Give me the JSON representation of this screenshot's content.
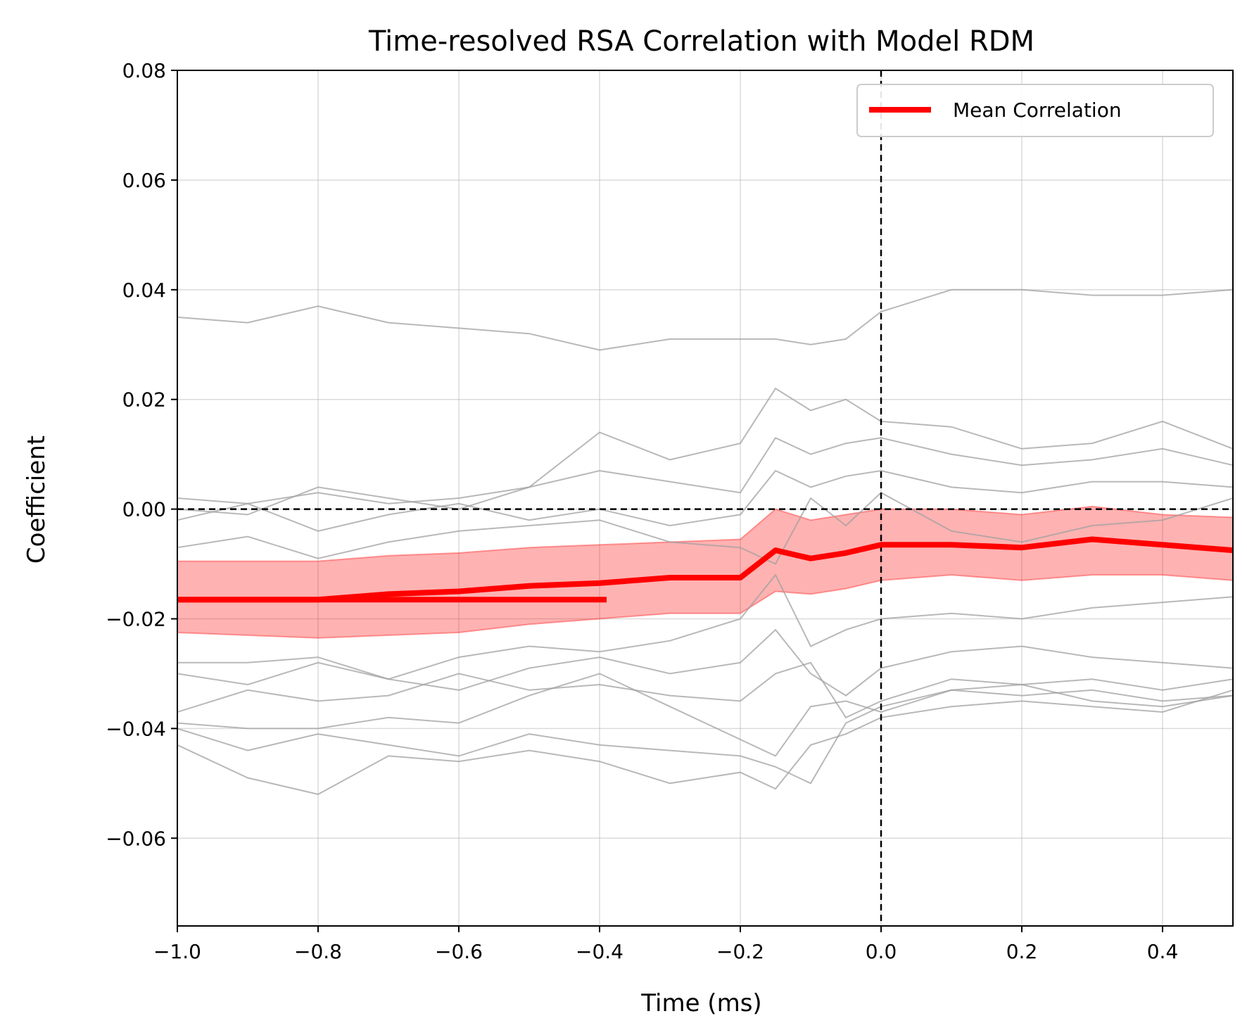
{
  "chart_data": {
    "type": "line",
    "title": "Time-resolved RSA Correlation with Model RDM",
    "xlabel": "Time (ms)",
    "ylabel": "Coefficient",
    "xlim": [
      -1.0,
      0.5
    ],
    "ylim": [
      -0.076,
      0.08
    ],
    "x_ticks": [
      -1.0,
      -0.8,
      -0.6,
      -0.4,
      -0.2,
      0.0,
      0.2,
      0.4
    ],
    "x_tick_labels": [
      "−1.0",
      "−0.8",
      "−0.6",
      "−0.4",
      "−0.2",
      "0.0",
      "0.2",
      "0.4"
    ],
    "y_ticks": [
      -0.06,
      -0.04,
      -0.02,
      0.0,
      0.02,
      0.04,
      0.06,
      0.08
    ],
    "y_tick_labels": [
      "−0.06",
      "−0.04",
      "−0.02",
      "0.00",
      "0.02",
      "0.04",
      "0.06",
      "0.08"
    ],
    "grid": true,
    "legend": {
      "position": "top-right",
      "entries": [
        "Mean Correlation"
      ]
    },
    "reference_lines": {
      "horizontal_y": 0.0,
      "vertical_x": 0.0,
      "style": "dashed"
    },
    "colors": {
      "mean": "#ff0000",
      "band": "#ff0000",
      "subjects": "#a0a0a0",
      "reference": "#000000"
    },
    "x": [
      -1.0,
      -0.9,
      -0.8,
      -0.7,
      -0.6,
      -0.5,
      -0.4,
      -0.3,
      -0.2,
      -0.15,
      -0.1,
      -0.05,
      0.0,
      0.1,
      0.2,
      0.3,
      0.4,
      0.5
    ],
    "series": [
      {
        "name": "Mean Correlation",
        "values": [
          -0.0165,
          -0.0165,
          -0.0165,
          -0.0155,
          -0.015,
          -0.014,
          -0.0135,
          -0.0125,
          -0.0125,
          -0.0075,
          -0.009,
          -0.008,
          -0.0065,
          -0.0065,
          -0.007,
          -0.0055,
          -0.0065,
          -0.0075
        ]
      },
      {
        "values": [
          0.035,
          0.034,
          0.037,
          0.034,
          0.033,
          0.032,
          0.029,
          0.031,
          0.031,
          0.031,
          0.03,
          0.031,
          0.036,
          0.04,
          0.04,
          0.039,
          0.039,
          0.04
        ]
      },
      {
        "values": [
          0.002,
          0.001,
          0.003,
          0.001,
          0.002,
          0.004,
          0.014,
          0.009,
          0.012,
          0.022,
          0.018,
          0.02,
          0.016,
          0.015,
          0.011,
          0.012,
          0.016,
          0.011
        ]
      },
      {
        "values": [
          0.0,
          -0.001,
          0.004,
          0.002,
          0.0,
          0.004,
          0.007,
          0.005,
          0.003,
          0.013,
          0.01,
          0.012,
          0.013,
          0.01,
          0.008,
          0.009,
          0.011,
          0.008
        ]
      },
      {
        "values": [
          -0.002,
          0.001,
          -0.004,
          -0.001,
          0.001,
          -0.002,
          0.0,
          -0.003,
          -0.001,
          0.007,
          0.004,
          0.006,
          0.007,
          0.004,
          0.003,
          0.005,
          0.005,
          0.004
        ]
      },
      {
        "values": [
          -0.007,
          -0.005,
          -0.009,
          -0.006,
          -0.004,
          -0.003,
          -0.002,
          -0.006,
          -0.007,
          -0.01,
          0.002,
          -0.003,
          0.003,
          -0.004,
          -0.006,
          -0.003,
          -0.002,
          0.002
        ]
      },
      {
        "values": [
          -0.03,
          -0.032,
          -0.028,
          -0.031,
          -0.027,
          -0.025,
          -0.026,
          -0.024,
          -0.02,
          -0.012,
          -0.025,
          -0.022,
          -0.02,
          -0.019,
          -0.02,
          -0.018,
          -0.017,
          -0.016
        ]
      },
      {
        "values": [
          -0.028,
          -0.028,
          -0.027,
          -0.031,
          -0.033,
          -0.029,
          -0.027,
          -0.03,
          -0.028,
          -0.022,
          -0.03,
          -0.034,
          -0.029,
          -0.026,
          -0.025,
          -0.027,
          -0.028,
          -0.029
        ]
      },
      {
        "values": [
          -0.037,
          -0.033,
          -0.035,
          -0.034,
          -0.03,
          -0.033,
          -0.032,
          -0.034,
          -0.035,
          -0.03,
          -0.028,
          -0.038,
          -0.035,
          -0.031,
          -0.032,
          -0.031,
          -0.033,
          -0.031
        ]
      },
      {
        "values": [
          -0.039,
          -0.04,
          -0.04,
          -0.038,
          -0.039,
          -0.034,
          -0.03,
          -0.036,
          -0.042,
          -0.045,
          -0.036,
          -0.035,
          -0.037,
          -0.033,
          -0.034,
          -0.033,
          -0.035,
          -0.034
        ]
      },
      {
        "values": [
          -0.04,
          -0.044,
          -0.041,
          -0.043,
          -0.045,
          -0.041,
          -0.043,
          -0.044,
          -0.045,
          -0.047,
          -0.05,
          -0.039,
          -0.036,
          -0.033,
          -0.032,
          -0.035,
          -0.036,
          -0.034
        ]
      },
      {
        "values": [
          -0.043,
          -0.049,
          -0.052,
          -0.045,
          -0.046,
          -0.044,
          -0.046,
          -0.05,
          -0.048,
          -0.051,
          -0.043,
          -0.041,
          -0.038,
          -0.036,
          -0.035,
          -0.036,
          -0.037,
          -0.033
        ]
      }
    ],
    "band": {
      "x": [
        -1.0,
        -0.9,
        -0.8,
        -0.7,
        -0.6,
        -0.5,
        -0.4,
        -0.3,
        -0.2,
        -0.15,
        -0.1,
        -0.05,
        0.0,
        0.1,
        0.2,
        0.3,
        0.4,
        0.5
      ],
      "upper": [
        -0.0095,
        -0.0095,
        -0.0095,
        -0.0085,
        -0.008,
        -0.007,
        -0.0065,
        -0.006,
        -0.0055,
        0.0,
        -0.002,
        -0.001,
        0.0,
        0.0,
        -0.001,
        0.0005,
        -0.001,
        -0.0015
      ],
      "lower": [
        -0.0225,
        -0.023,
        -0.0235,
        -0.023,
        -0.0225,
        -0.021,
        -0.02,
        -0.019,
        -0.019,
        -0.015,
        -0.0155,
        -0.0145,
        -0.013,
        -0.012,
        -0.013,
        -0.012,
        -0.012,
        -0.013
      ]
    },
    "baseline_segment": {
      "x": [
        -1.0,
        -0.39
      ],
      "y": -0.0165
    }
  }
}
